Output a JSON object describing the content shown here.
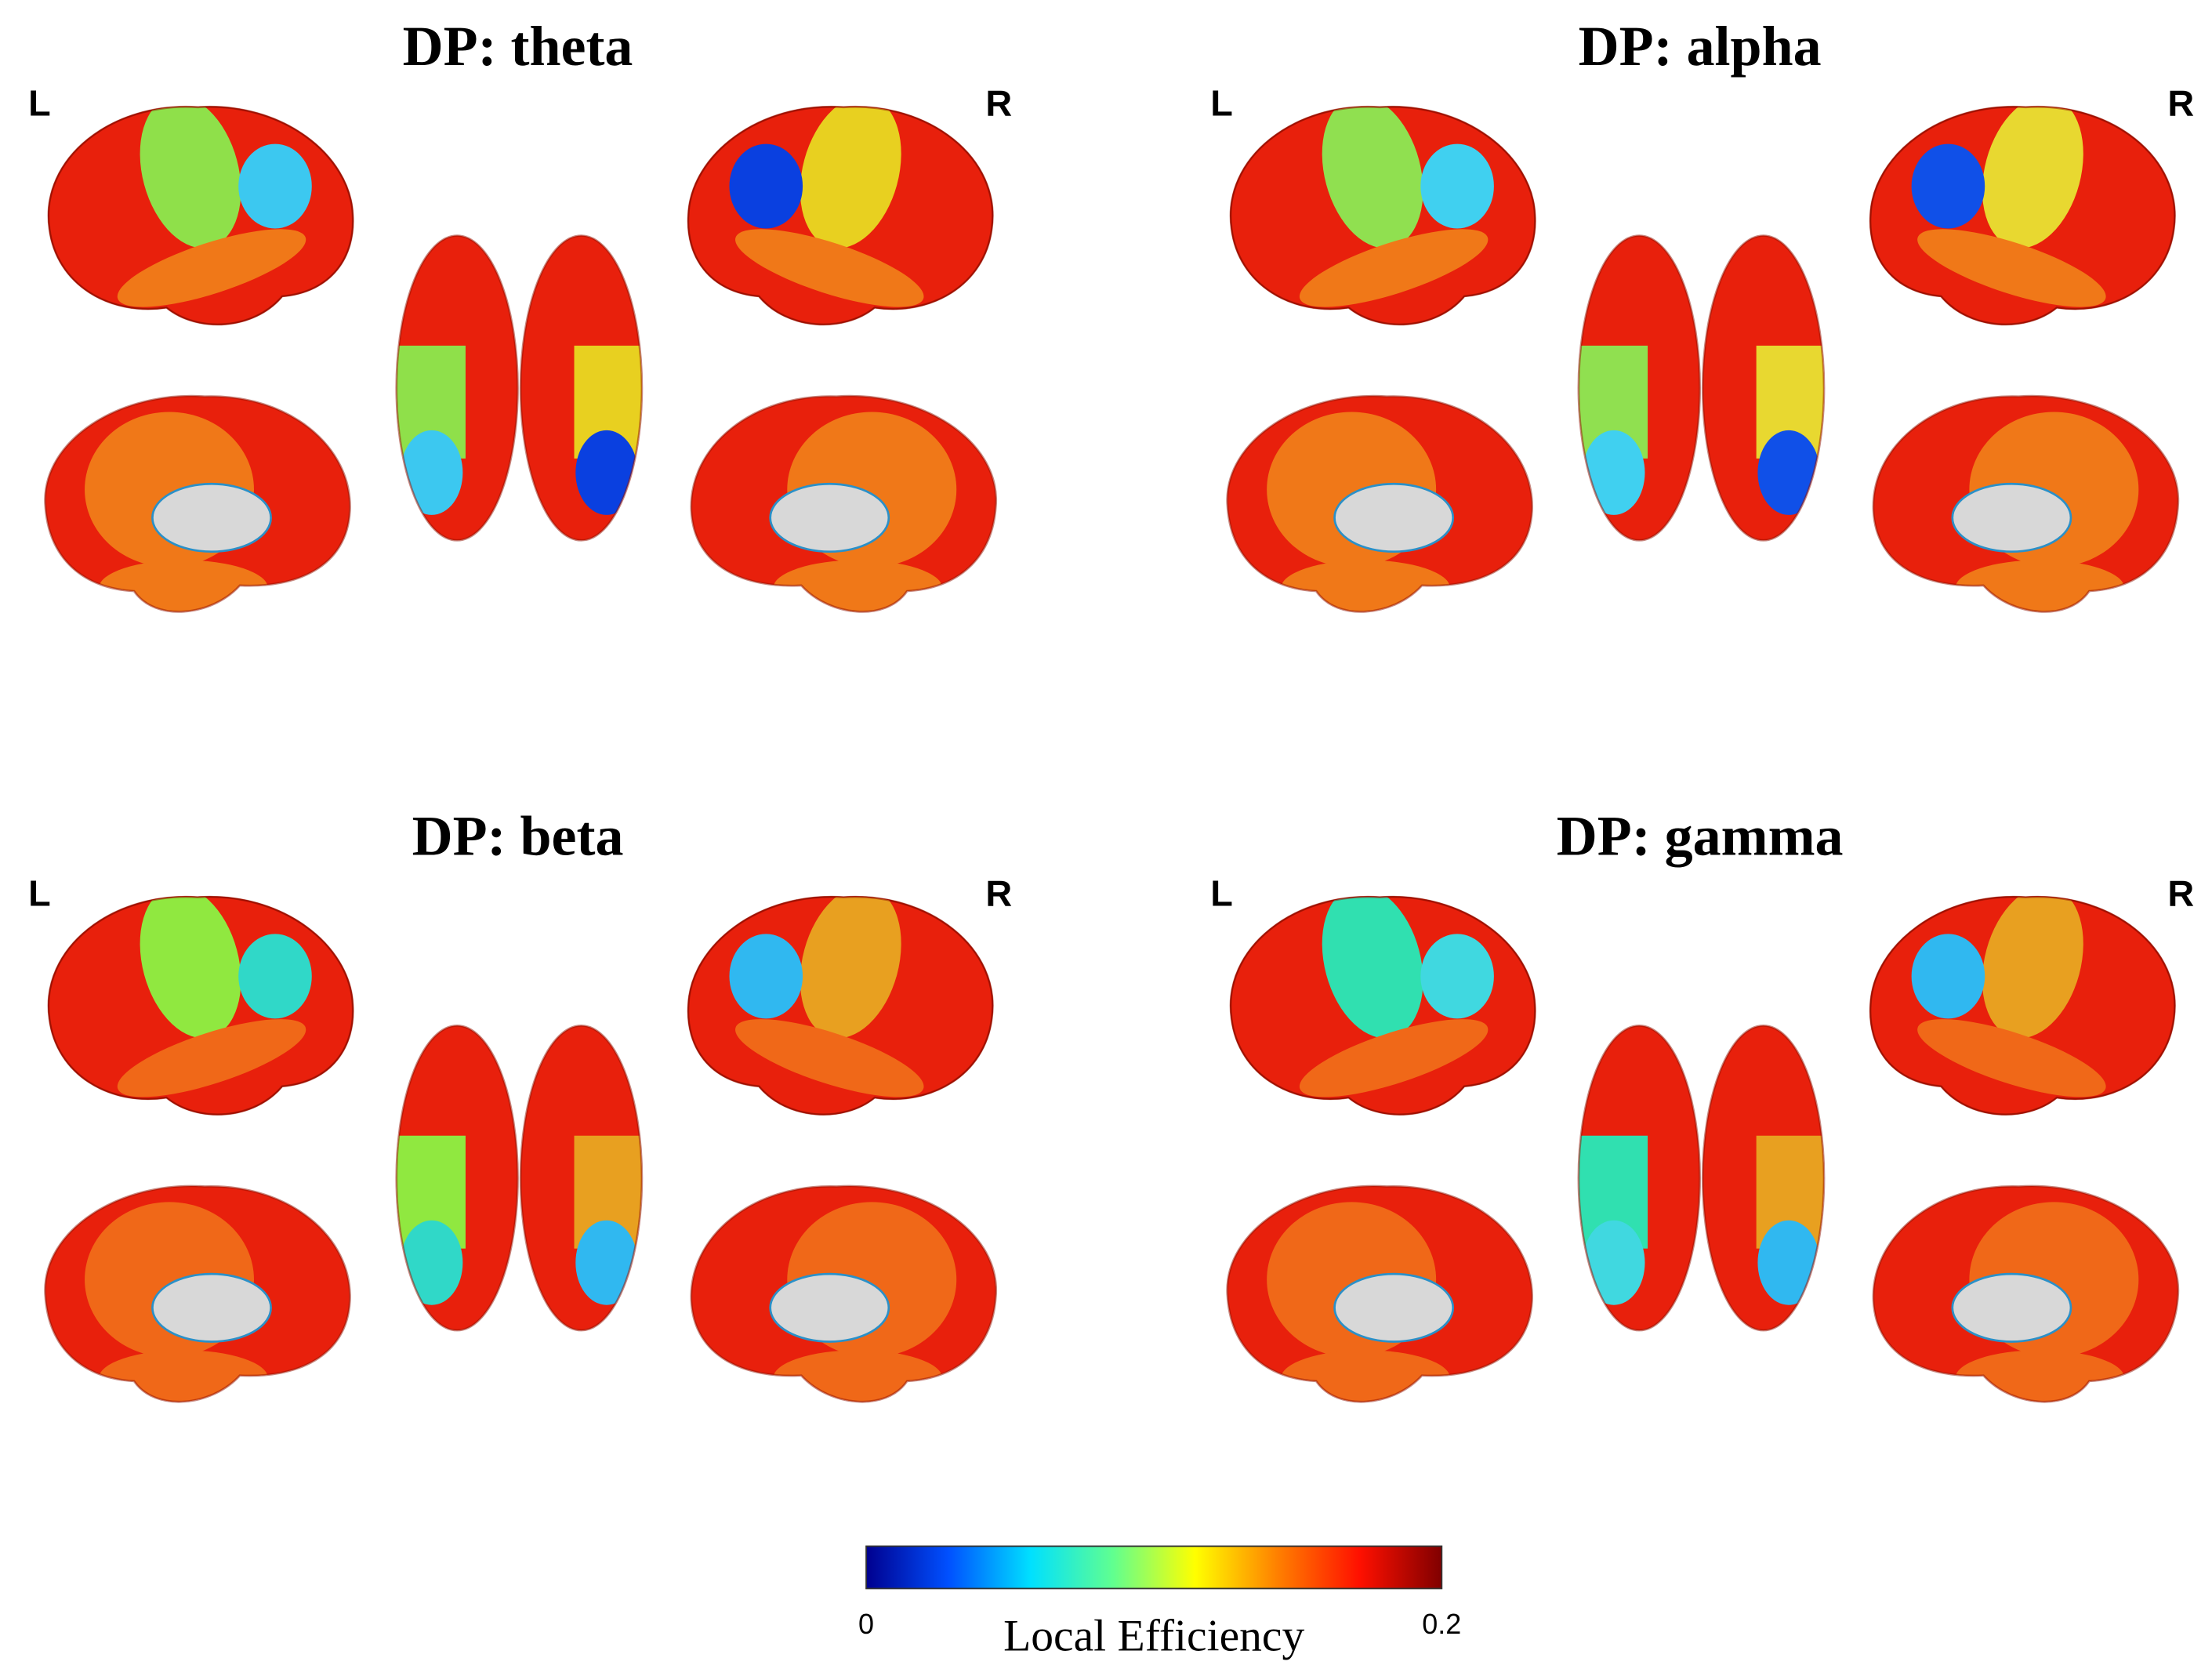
{
  "panels": [
    {
      "title": "DP: theta",
      "left_label": "L",
      "right_label": "R"
    },
    {
      "title": "DP: alpha",
      "left_label": "L",
      "right_label": "R"
    },
    {
      "title": "DP: beta",
      "left_label": "L",
      "right_label": "R"
    },
    {
      "title": "DP: gamma",
      "left_label": "L",
      "right_label": "R"
    }
  ],
  "colorbar": {
    "label": "Local Efficiency",
    "ticks": [
      0,
      0.2
    ],
    "colors": [
      "#00008f",
      "#0050ff",
      "#00e0ff",
      "#60ff90",
      "#ffff00",
      "#ff8000",
      "#ff1000",
      "#800000"
    ]
  }
}
